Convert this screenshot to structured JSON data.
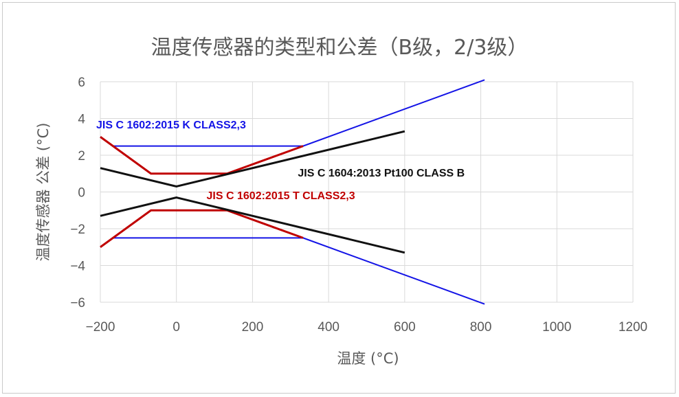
{
  "chart_data": {
    "type": "line",
    "title": "温度传感器的类型和公差（B级，2/3级）",
    "xlabel": "温度 (°C)",
    "ylabel": "温度传感器 公差 (°C)",
    "xlim": [
      -200,
      1200
    ],
    "ylim": [
      -6,
      6
    ],
    "xticks": [
      "−200",
      "0",
      "200",
      "400",
      "600",
      "800",
      "1000",
      "1200"
    ],
    "yticks": [
      "6",
      "4",
      "2",
      "0",
      "−2",
      "−4",
      "−6"
    ],
    "grid": true,
    "colors": {
      "blue": "#1414e6",
      "red": "#c00000",
      "black": "#111111"
    },
    "series": [
      {
        "name": "JIS C 1602:2015 K CLASS2,3",
        "color": "#1414e6",
        "part": "upper",
        "x": [
          -200,
          -167,
          333,
          810
        ],
        "y": [
          3.0,
          2.5,
          2.5,
          6.1
        ]
      },
      {
        "name": "JIS C 1602:2015 K CLASS2,3",
        "color": "#1414e6",
        "part": "lower",
        "x": [
          -200,
          -167,
          333,
          810
        ],
        "y": [
          -3.0,
          -2.5,
          -2.5,
          -6.1
        ]
      },
      {
        "name": "JIS C 1602:2015 T CLASS2,3",
        "color": "#c00000",
        "part": "upper",
        "x": [
          -200,
          -67,
          133,
          333
        ],
        "y": [
          3.0,
          1.0,
          1.0,
          2.5
        ]
      },
      {
        "name": "JIS C 1602:2015 T CLASS2,3",
        "color": "#c00000",
        "part": "lower",
        "x": [
          -200,
          -67,
          133,
          333
        ],
        "y": [
          -3.0,
          -1.0,
          -1.0,
          -2.5
        ]
      },
      {
        "name": "JIS C 1604:2013 Pt100 CLASS B",
        "color": "#111111",
        "part": "upper",
        "x": [
          -200,
          0,
          600
        ],
        "y": [
          1.3,
          0.3,
          3.3
        ]
      },
      {
        "name": "JIS C 1604:2013 Pt100 CLASS B",
        "color": "#111111",
        "part": "lower",
        "x": [
          -200,
          0,
          600
        ],
        "y": [
          -1.3,
          -0.3,
          -3.3
        ]
      }
    ],
    "annotations": [
      {
        "text": "JIS C 1602:2015 K CLASS2,3",
        "color": "#1414e6",
        "x": -200,
        "y": 3.45
      },
      {
        "text": "JIS C 1604:2013 Pt100 CLASS B",
        "color": "#111111",
        "x": 330,
        "y": 0.85
      },
      {
        "text": "JIS C 1602:2015 T CLASS2,3",
        "color": "#c00000",
        "x": 90,
        "y": -0.4
      }
    ]
  }
}
